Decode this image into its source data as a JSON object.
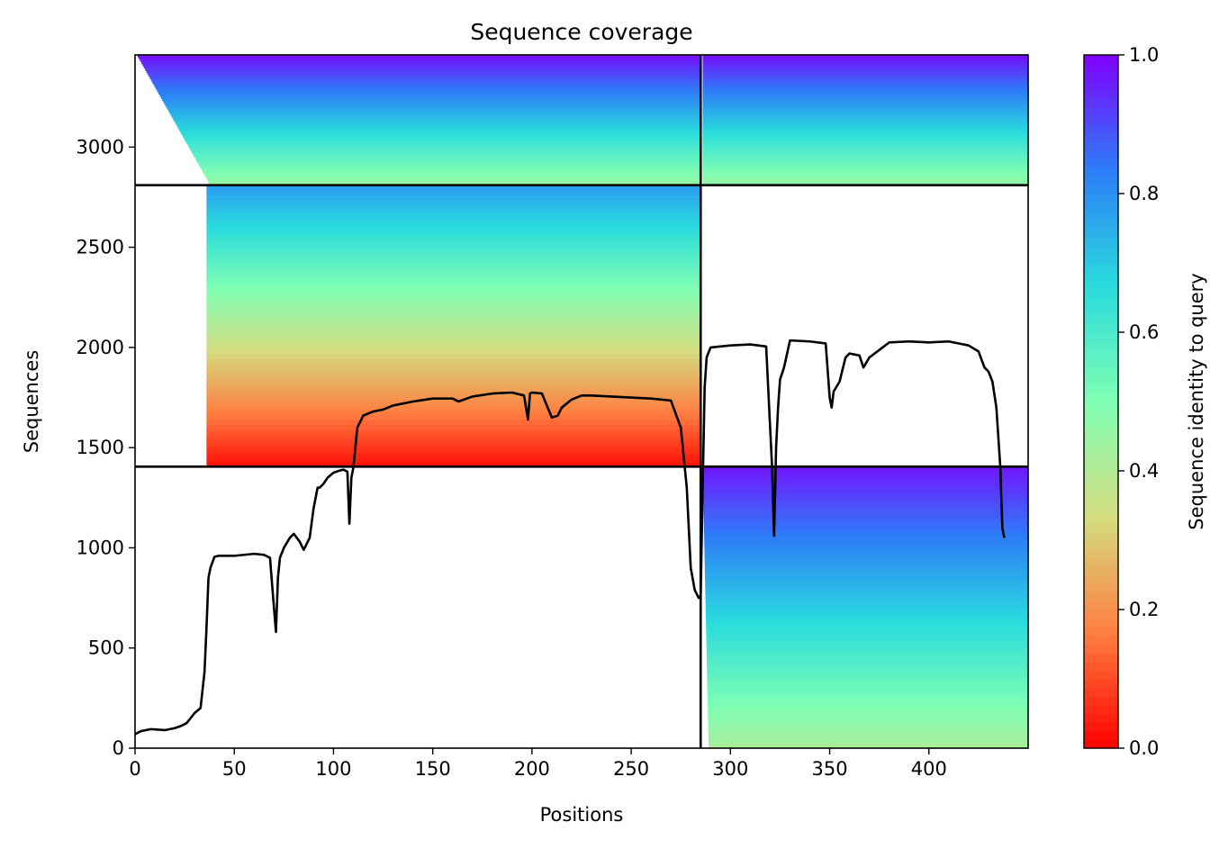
{
  "chart_data": {
    "type": "heatmap",
    "title": "Sequence coverage",
    "xlabel": "Positions",
    "ylabel": "Sequences",
    "xlim": [
      0,
      450
    ],
    "ylim": [
      0,
      3460
    ],
    "xticks": [
      0,
      50,
      100,
      150,
      200,
      250,
      300,
      350,
      400
    ],
    "yticks": [
      0,
      500,
      1000,
      1500,
      2000,
      2500,
      3000
    ],
    "grid": false,
    "colorbar": {
      "label": "Sequence identity to query",
      "range": [
        0.0,
        1.0
      ],
      "ticks": [
        "0.0",
        "0.2",
        "0.4",
        "0.6",
        "0.8",
        "1.0"
      ],
      "colormap": "rainbow_r",
      "stops": [
        "#ff0000",
        "#ff7e41",
        "#d4dc7f",
        "#80feb3",
        "#2adcdd",
        "#2c7ef7",
        "#8000ff"
      ]
    },
    "divider_lines": {
      "horizontal_at_sequence": [
        1405,
        2810
      ],
      "vertical_at_position": [
        285
      ]
    },
    "blocks": [
      {
        "name": "bottom-right",
        "x": [
          286,
          450
        ],
        "y": [
          0,
          1405
        ],
        "identity_top": 0.97,
        "identity_bottom": 0.42,
        "coverage_start_top": 286,
        "coverage_start_bottom": 289
      },
      {
        "name": "middle-left",
        "x": [
          0,
          285
        ],
        "y": [
          1405,
          2810
        ],
        "identity_top": 0.78,
        "identity_bottom": 0.02,
        "coverage_start_top": 36,
        "coverage_start_bottom": 36
      },
      {
        "name": "top-left",
        "x": [
          0,
          285
        ],
        "y": [
          2810,
          3460
        ],
        "identity_top": 0.98,
        "identity_bottom": 0.45,
        "coverage_start_top": 1,
        "coverage_start_bottom": 38
      },
      {
        "name": "top-right",
        "x": [
          286,
          450
        ],
        "y": [
          2810,
          3460
        ],
        "identity_top": 0.98,
        "identity_bottom": 0.45,
        "coverage_start_top": 286,
        "coverage_start_bottom": 286
      }
    ],
    "coverage_line": {
      "x": [
        0,
        3,
        8,
        15,
        20,
        23,
        26,
        28,
        30,
        33,
        35,
        36,
        37,
        38,
        40,
        42,
        45,
        50,
        55,
        60,
        65,
        68,
        70,
        71,
        72,
        73,
        75,
        78,
        80,
        83,
        85,
        88,
        90,
        92,
        93,
        95,
        97,
        100,
        103,
        105,
        107,
        108,
        109,
        110,
        112,
        115,
        120,
        125,
        130,
        140,
        150,
        160,
        163,
        170,
        180,
        190,
        196,
        198,
        199,
        200,
        205,
        210,
        213,
        215,
        220,
        225,
        230,
        240,
        250,
        260,
        270,
        275,
        278,
        280,
        282,
        284,
        285,
        286,
        287,
        288,
        290,
        300,
        310,
        318,
        320,
        321,
        322,
        323,
        324,
        325,
        327,
        330,
        340,
        348,
        350,
        351,
        352,
        355,
        358,
        360,
        365,
        367,
        370,
        380,
        390,
        400,
        410,
        420,
        425,
        428,
        430,
        432,
        434,
        436,
        437,
        438
      ],
      "y": [
        70,
        85,
        95,
        90,
        100,
        110,
        125,
        150,
        175,
        200,
        380,
        600,
        850,
        900,
        955,
        960,
        960,
        960,
        965,
        970,
        965,
        950,
        700,
        580,
        850,
        950,
        1000,
        1050,
        1070,
        1030,
        990,
        1050,
        1200,
        1300,
        1300,
        1320,
        1350,
        1375,
        1385,
        1390,
        1380,
        1120,
        1350,
        1400,
        1600,
        1660,
        1680,
        1690,
        1710,
        1730,
        1745,
        1745,
        1730,
        1755,
        1770,
        1775,
        1760,
        1640,
        1770,
        1775,
        1770,
        1650,
        1660,
        1700,
        1740,
        1760,
        1760,
        1755,
        1750,
        1745,
        1735,
        1600,
        1300,
        900,
        790,
        750,
        760,
        1300,
        1800,
        1950,
        2000,
        2010,
        2015,
        2005,
        1600,
        1400,
        1060,
        1500,
        1700,
        1840,
        1900,
        2035,
        2030,
        2020,
        1750,
        1700,
        1780,
        1830,
        1950,
        1970,
        1960,
        1900,
        1950,
        2025,
        2030,
        2025,
        2030,
        2010,
        1980,
        1900,
        1880,
        1830,
        1700,
        1400,
        1100,
        1050
      ]
    }
  }
}
